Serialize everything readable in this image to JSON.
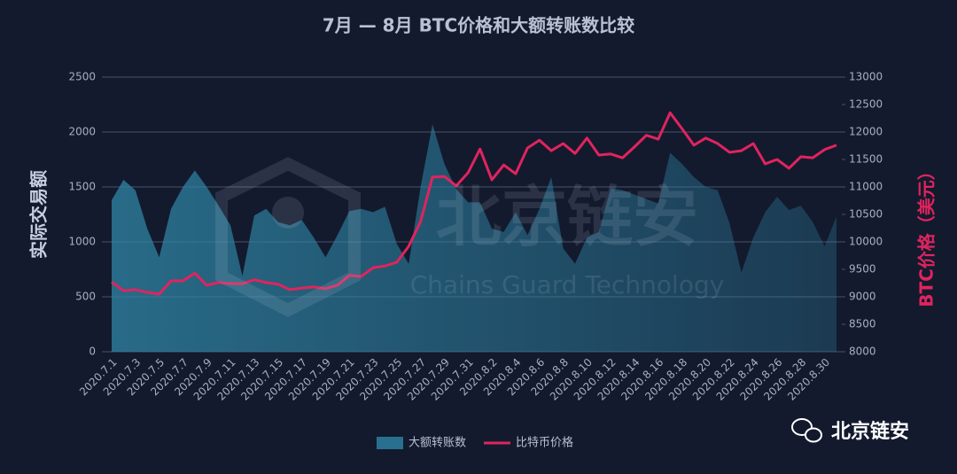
{
  "chart_data": {
    "type": "area",
    "title": "7月 — 8月 BTC价格和大额转账数比较",
    "ylabel": "实际交易额",
    "y2label": "BTC价格（美元）",
    "categories": [
      "2020.7.1",
      null,
      "2020.7.3",
      null,
      "2020.7.5",
      null,
      "2020.7.7",
      null,
      "2020.7.9",
      null,
      "2020.7.11",
      null,
      "2020.7.13",
      null,
      "2020.7.15",
      null,
      "2020.7.17",
      null,
      "2020.7.19",
      null,
      "2020.7.21",
      null,
      "2020.7.23",
      null,
      "2020.7.25",
      null,
      "2020.7.27",
      null,
      "2020.7.29",
      null,
      "2020.7.31",
      null,
      "2020.8.2",
      null,
      "2020.8.4",
      null,
      "2020.8.6",
      null,
      "2020.8.8",
      null,
      "2020.8.10",
      null,
      "2020.8.12",
      null,
      "2020.8.14",
      null,
      "2020.8.16",
      null,
      "2020.8.18",
      null,
      "2020.8.20",
      null,
      "2020.8.22",
      null,
      "2020.8.24",
      null,
      "2020.8.26",
      null,
      "2020.8.28",
      null,
      "2020.8.30",
      null
    ],
    "series": [
      {
        "name": "大额转账数",
        "type": "area",
        "color": "#2f86a6",
        "values": [
          1380,
          1565,
          1470,
          1120,
          860,
          1300,
          1500,
          1650,
          1500,
          1330,
          1150,
          690,
          1240,
          1300,
          1180,
          1150,
          1200,
          1040,
          860,
          1060,
          1280,
          1300,
          1270,
          1320,
          980,
          800,
          1500,
          2070,
          1710,
          1480,
          1360,
          1360,
          1120,
          1090,
          1270,
          1060,
          1300,
          1590,
          940,
          800,
          1040,
          1090,
          1490,
          1470,
          1430,
          1390,
          1350,
          1810,
          1710,
          1590,
          1500,
          1470,
          1170,
          720,
          1040,
          1270,
          1410,
          1290,
          1330,
          1180,
          960,
          1230
        ]
      },
      {
        "name": "比特币价格",
        "type": "line",
        "axis": "y2",
        "color": "#e0245e",
        "values": [
          9270,
          9110,
          9130,
          9080,
          9050,
          9290,
          9290,
          9430,
          9210,
          9260,
          9240,
          9240,
          9310,
          9260,
          9230,
          9130,
          9160,
          9180,
          9150,
          9210,
          9390,
          9370,
          9530,
          9560,
          9630,
          9920,
          10370,
          11180,
          11190,
          11020,
          11260,
          11690,
          11130,
          11400,
          11240,
          11710,
          11850,
          11660,
          11790,
          11610,
          11890,
          11580,
          11600,
          11530,
          11730,
          11940,
          11870,
          12350,
          12060,
          11760,
          11890,
          11790,
          11630,
          11660,
          11790,
          11420,
          11500,
          11340,
          11550,
          11530,
          11680,
          11760
        ]
      }
    ],
    "ylim": [
      0,
      2500
    ],
    "yticks": [
      0,
      500,
      1000,
      1500,
      2000,
      2500
    ],
    "y2lim": [
      8000,
      13000
    ],
    "y2ticks": [
      8000,
      8500,
      9000,
      9500,
      10000,
      10500,
      11000,
      11500,
      12000,
      12500,
      13000
    ],
    "grid": true,
    "legend": "bottom"
  },
  "watermark": {
    "name": "北京链安",
    "subtitle": "Chains Guard Technology"
  },
  "brand": "北京链安"
}
